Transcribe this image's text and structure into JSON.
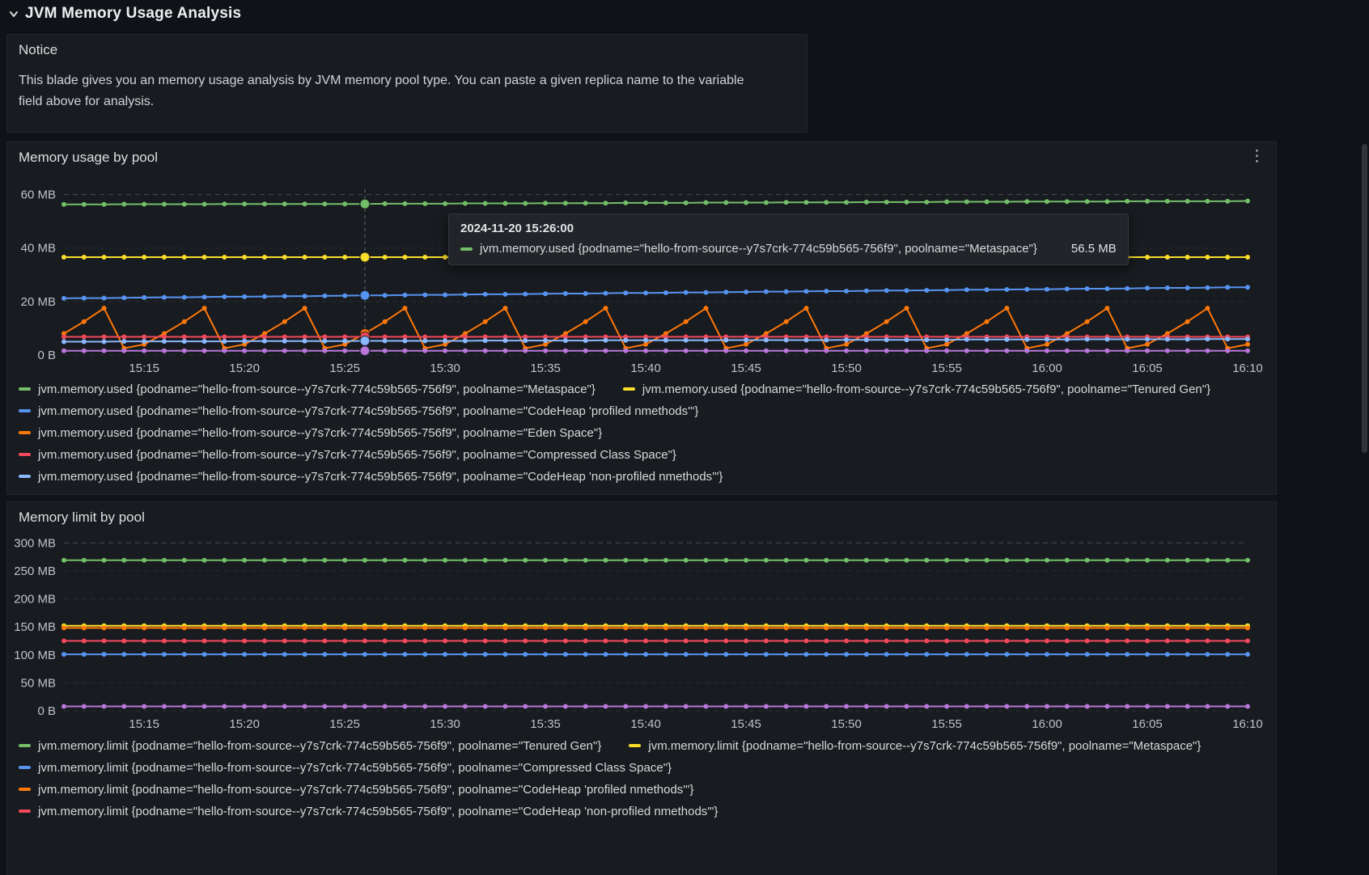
{
  "row_header": {
    "title": "JVM Memory Usage Analysis",
    "collapse_icon": "chevron-down",
    "state": "expanded"
  },
  "icons": {
    "panel_menu": "kebab-vertical",
    "kebab_glyph": "⋮"
  },
  "notice_panel": {
    "title": "Notice",
    "body": "This blade gives you an memory usage analysis by JVM memory pool type. You can paste a given replica name to the variable field above for analysis."
  },
  "usage_panel": {
    "title": "Memory usage by pool"
  },
  "limit_panel": {
    "title": "Memory limit by pool"
  },
  "tooltip": {
    "timestamp": "2024-11-20 15:26:00",
    "series_label": "jvm.memory.used {podname=\"hello-from-source--y7s7crk-774c59b565-756f9\", poolname=\"Metaspace\"}",
    "value": "56.5 MB",
    "swatch_color": "#73BF69"
  },
  "chart_data": [
    {
      "id": "usage",
      "type": "line",
      "title": "Memory usage by pool",
      "x_start": "15:11",
      "x_interval_minutes": 1,
      "x_tick_labels": [
        "15:15",
        "15:20",
        "15:25",
        "15:30",
        "15:35",
        "15:40",
        "15:45",
        "15:50",
        "15:55",
        "16:00",
        "16:05",
        "16:10"
      ],
      "x_tick_indices": [
        4,
        9,
        14,
        19,
        24,
        29,
        34,
        39,
        44,
        49,
        54,
        59
      ],
      "y_ticks": [
        0,
        20,
        40,
        60
      ],
      "y_tick_labels": [
        "0 B",
        "20 MB",
        "40 MB",
        "60 MB"
      ],
      "ylim": [
        0,
        62
      ],
      "unit": "MB",
      "grid": true,
      "legend_position": "bottom",
      "crosshair_index": 15,
      "legend_rows": [
        [
          0,
          1
        ],
        [
          2
        ],
        [
          3
        ],
        [
          4
        ],
        [
          5
        ]
      ],
      "series": [
        {
          "name": "jvm.memory.used {podname=\"hello-from-source--y7s7crk-774c59b565-756f9\", poolname=\"Metaspace\"}",
          "color": "#73BF69",
          "values": [
            56.3,
            56.3,
            56.3,
            56.4,
            56.4,
            56.4,
            56.4,
            56.4,
            56.5,
            56.5,
            56.5,
            56.5,
            56.5,
            56.5,
            56.5,
            56.5,
            56.6,
            56.6,
            56.6,
            56.6,
            56.7,
            56.7,
            56.7,
            56.7,
            56.8,
            56.8,
            56.8,
            56.8,
            56.9,
            56.9,
            56.9,
            56.9,
            57.0,
            57.0,
            57.0,
            57.0,
            57.1,
            57.1,
            57.1,
            57.1,
            57.2,
            57.2,
            57.2,
            57.2,
            57.3,
            57.3,
            57.3,
            57.3,
            57.4,
            57.4,
            57.4,
            57.4,
            57.4,
            57.5,
            57.5,
            57.5,
            57.5,
            57.5,
            57.5,
            57.6
          ]
        },
        {
          "name": "jvm.memory.used {podname=\"hello-from-source--y7s7crk-774c59b565-756f9\", poolname=\"Tenured Gen\"}",
          "color": "#FADE2A",
          "values": [
            36.6,
            36.6,
            36.6,
            36.6,
            36.6,
            36.6,
            36.6,
            36.6,
            36.6,
            36.6,
            36.6,
            36.6,
            36.6,
            36.6,
            36.6,
            36.6,
            36.6,
            36.6,
            36.6,
            36.6,
            36.6,
            36.6,
            36.6,
            36.6,
            36.6,
            36.6,
            36.6,
            36.6,
            36.6,
            36.6,
            36.6,
            36.6,
            36.6,
            36.6,
            36.6,
            36.6,
            36.6,
            36.6,
            36.6,
            36.6,
            36.6,
            36.6,
            36.6,
            36.6,
            36.6,
            36.6,
            36.6,
            36.6,
            36.6,
            36.6,
            36.6,
            36.6,
            36.6,
            36.6,
            36.6,
            36.6,
            36.6,
            36.6,
            36.6,
            36.6
          ]
        },
        {
          "name": "jvm.memory.used {podname=\"hello-from-source--y7s7crk-774c59b565-756f9\", poolname=\"CodeHeap 'profiled nmethods'\"}",
          "color": "#5794F2",
          "values": [
            21.2,
            21.3,
            21.3,
            21.4,
            21.5,
            21.6,
            21.6,
            21.7,
            21.8,
            21.8,
            21.9,
            22.0,
            22.0,
            22.1,
            22.2,
            22.3,
            22.3,
            22.4,
            22.5,
            22.5,
            22.6,
            22.7,
            22.7,
            22.8,
            22.9,
            23.0,
            23.0,
            23.1,
            23.2,
            23.2,
            23.3,
            23.4,
            23.4,
            23.5,
            23.6,
            23.7,
            23.7,
            23.8,
            23.9,
            23.9,
            24.0,
            24.1,
            24.1,
            24.2,
            24.3,
            24.4,
            24.4,
            24.5,
            24.6,
            24.6,
            24.7,
            24.8,
            24.8,
            24.9,
            25.0,
            25.1,
            25.1,
            25.2,
            25.3,
            25.3
          ]
        },
        {
          "name": "jvm.memory.used {podname=\"hello-from-source--y7s7crk-774c59b565-756f9\", poolname=\"Eden Space\"}",
          "color": "#FF780A",
          "values": [
            8,
            12.5,
            17.5,
            2.5,
            4,
            8,
            12.5,
            17.5,
            2.5,
            4,
            8,
            12.5,
            17.5,
            2.5,
            4,
            8,
            12.5,
            17.5,
            2.5,
            4,
            8,
            12.5,
            17.5,
            2.5,
            4,
            8,
            12.5,
            17.5,
            2.5,
            4,
            8,
            12.5,
            17.5,
            2.5,
            4,
            8,
            12.5,
            17.5,
            2.5,
            4,
            8,
            12.5,
            17.5,
            2.5,
            4,
            8,
            12.5,
            17.5,
            2.5,
            4,
            8,
            12.5,
            17.5,
            2.5,
            4,
            8,
            12.5,
            17.5,
            2.5,
            4
          ]
        },
        {
          "name": "jvm.memory.used {podname=\"hello-from-source--y7s7crk-774c59b565-756f9\", poolname=\"Compressed Class Space\"}",
          "color": "#F2495C",
          "values": [
            6.8,
            6.8,
            6.8,
            6.8,
            6.8,
            6.8,
            6.8,
            6.8,
            6.8,
            6.8,
            6.8,
            6.8,
            6.8,
            6.8,
            6.8,
            6.8,
            6.8,
            6.8,
            6.8,
            6.8,
            6.8,
            6.8,
            6.8,
            6.8,
            6.8,
            6.8,
            6.8,
            6.8,
            6.8,
            6.8,
            6.8,
            6.8,
            6.8,
            6.8,
            6.8,
            6.8,
            6.8,
            6.8,
            6.8,
            6.8,
            6.8,
            6.8,
            6.8,
            6.8,
            6.8,
            6.8,
            6.8,
            6.8,
            6.8,
            6.8,
            6.8,
            6.8,
            6.8,
            6.8,
            6.8,
            6.8,
            6.8,
            6.8,
            6.8,
            6.8
          ]
        },
        {
          "name": "jvm.memory.used {podname=\"hello-from-source--y7s7crk-774c59b565-756f9\", poolname=\"CodeHeap 'non-profiled nmethods'\"}",
          "color": "#8AB8FF",
          "values": [
            5.0,
            5.0,
            5.0,
            5.1,
            5.1,
            5.1,
            5.1,
            5.1,
            5.1,
            5.2,
            5.2,
            5.2,
            5.2,
            5.2,
            5.2,
            5.3,
            5.3,
            5.3,
            5.3,
            5.3,
            5.3,
            5.4,
            5.4,
            5.4,
            5.4,
            5.4,
            5.4,
            5.5,
            5.5,
            5.5,
            5.5,
            5.5,
            5.5,
            5.6,
            5.6,
            5.6,
            5.6,
            5.6,
            5.6,
            5.7,
            5.7,
            5.7,
            5.7,
            5.7,
            5.7,
            5.8,
            5.8,
            5.8,
            5.8,
            5.8,
            5.8,
            5.9,
            5.9,
            5.9,
            5.9,
            5.9,
            5.9,
            6.0,
            6.0,
            6.0
          ]
        },
        {
          "name": "",
          "note": "legend entry not visible in screenshot",
          "in_legend": false,
          "color": "#B877D9",
          "values": [
            1.6,
            1.6,
            1.6,
            1.6,
            1.6,
            1.6,
            1.6,
            1.6,
            1.6,
            1.6,
            1.6,
            1.6,
            1.6,
            1.6,
            1.6,
            1.6,
            1.6,
            1.6,
            1.6,
            1.6,
            1.6,
            1.6,
            1.6,
            1.6,
            1.6,
            1.6,
            1.6,
            1.6,
            1.6,
            1.6,
            1.6,
            1.6,
            1.6,
            1.6,
            1.6,
            1.6,
            1.6,
            1.6,
            1.6,
            1.6,
            1.6,
            1.6,
            1.6,
            1.6,
            1.6,
            1.6,
            1.6,
            1.6,
            1.6,
            1.6,
            1.6,
            1.6,
            1.6,
            1.6,
            1.6,
            1.6,
            1.6,
            1.6,
            1.6,
            1.6
          ]
        }
      ]
    },
    {
      "id": "limit",
      "type": "line",
      "title": "Memory limit by pool",
      "x_start": "15:11",
      "x_interval_minutes": 1,
      "x_tick_labels": [
        "15:15",
        "15:20",
        "15:25",
        "15:30",
        "15:35",
        "15:40",
        "15:45",
        "15:50",
        "15:55",
        "16:00",
        "16:05",
        "16:10"
      ],
      "x_tick_indices": [
        4,
        9,
        14,
        19,
        24,
        29,
        34,
        39,
        44,
        49,
        54,
        59
      ],
      "y_ticks": [
        0,
        50,
        100,
        150,
        200,
        250,
        300
      ],
      "y_tick_labels": [
        "0 B",
        "50 MB",
        "100 MB",
        "150 MB",
        "200 MB",
        "250 MB",
        "300 MB"
      ],
      "ylim": [
        0,
        312
      ],
      "unit": "MB",
      "grid": true,
      "legend_position": "bottom",
      "crosshair_index": null,
      "legend_rows": [
        [
          0,
          1
        ],
        [
          2
        ],
        [
          3
        ],
        [
          4
        ]
      ],
      "series": [
        {
          "name": "jvm.memory.limit {podname=\"hello-from-source--y7s7crk-774c59b565-756f9\", poolname=\"Tenured Gen\"}",
          "color": "#73BF69",
          "values": [
            269,
            269,
            269,
            269,
            269,
            269,
            269,
            269,
            269,
            269,
            269,
            269,
            269,
            269,
            269,
            269,
            269,
            269,
            269,
            269,
            269,
            269,
            269,
            269,
            269,
            269,
            269,
            269,
            269,
            269,
            269,
            269,
            269,
            269,
            269,
            269,
            269,
            269,
            269,
            269,
            269,
            269,
            269,
            269,
            269,
            269,
            269,
            269,
            269,
            269,
            269,
            269,
            269,
            269,
            269,
            269,
            269,
            269,
            269,
            269
          ]
        },
        {
          "name": "jvm.memory.limit {podname=\"hello-from-source--y7s7crk-774c59b565-756f9\", poolname=\"Metaspace\"}",
          "color": "#FADE2A",
          "values": [
            152,
            152,
            152,
            152,
            152,
            152,
            152,
            152,
            152,
            152,
            152,
            152,
            152,
            152,
            152,
            152,
            152,
            152,
            152,
            152,
            152,
            152,
            152,
            152,
            152,
            152,
            152,
            152,
            152,
            152,
            152,
            152,
            152,
            152,
            152,
            152,
            152,
            152,
            152,
            152,
            152,
            152,
            152,
            152,
            152,
            152,
            152,
            152,
            152,
            152,
            152,
            152,
            152,
            152,
            152,
            152,
            152,
            152,
            152,
            152
          ]
        },
        {
          "name": "jvm.memory.limit {podname=\"hello-from-source--y7s7crk-774c59b565-756f9\", poolname=\"Compressed Class Space\"}",
          "color": "#5794F2",
          "values": [
            101,
            101,
            101,
            101,
            101,
            101,
            101,
            101,
            101,
            101,
            101,
            101,
            101,
            101,
            101,
            101,
            101,
            101,
            101,
            101,
            101,
            101,
            101,
            101,
            101,
            101,
            101,
            101,
            101,
            101,
            101,
            101,
            101,
            101,
            101,
            101,
            101,
            101,
            101,
            101,
            101,
            101,
            101,
            101,
            101,
            101,
            101,
            101,
            101,
            101,
            101,
            101,
            101,
            101,
            101,
            101,
            101,
            101,
            101,
            101
          ]
        },
        {
          "name": "jvm.memory.limit {podname=\"hello-from-source--y7s7crk-774c59b565-756f9\", poolname=\"CodeHeap 'profiled nmethods'\"}",
          "color": "#FF780A",
          "values": [
            148,
            148,
            148,
            148,
            148,
            148,
            148,
            148,
            148,
            148,
            148,
            148,
            148,
            148,
            148,
            148,
            148,
            148,
            148,
            148,
            148,
            148,
            148,
            148,
            148,
            148,
            148,
            148,
            148,
            148,
            148,
            148,
            148,
            148,
            148,
            148,
            148,
            148,
            148,
            148,
            148,
            148,
            148,
            148,
            148,
            148,
            148,
            148,
            148,
            148,
            148,
            148,
            148,
            148,
            148,
            148,
            148,
            148,
            148,
            148
          ]
        },
        {
          "name": "jvm.memory.limit {podname=\"hello-from-source--y7s7crk-774c59b565-756f9\", poolname=\"CodeHeap 'non-profiled nmethods'\"}",
          "color": "#F2495C",
          "values": [
            125,
            125,
            125,
            125,
            125,
            125,
            125,
            125,
            125,
            125,
            125,
            125,
            125,
            125,
            125,
            125,
            125,
            125,
            125,
            125,
            125,
            125,
            125,
            125,
            125,
            125,
            125,
            125,
            125,
            125,
            125,
            125,
            125,
            125,
            125,
            125,
            125,
            125,
            125,
            125,
            125,
            125,
            125,
            125,
            125,
            125,
            125,
            125,
            125,
            125,
            125,
            125,
            125,
            125,
            125,
            125,
            125,
            125,
            125,
            125
          ]
        },
        {
          "name": "",
          "note": "legend entry not visible in screenshot",
          "in_legend": false,
          "color": "#B877D9",
          "values": [
            8,
            8,
            8,
            8,
            8,
            8,
            8,
            8,
            8,
            8,
            8,
            8,
            8,
            8,
            8,
            8,
            8,
            8,
            8,
            8,
            8,
            8,
            8,
            8,
            8,
            8,
            8,
            8,
            8,
            8,
            8,
            8,
            8,
            8,
            8,
            8,
            8,
            8,
            8,
            8,
            8,
            8,
            8,
            8,
            8,
            8,
            8,
            8,
            8,
            8,
            8,
            8,
            8,
            8,
            8,
            8,
            8,
            8,
            8,
            8
          ]
        }
      ]
    }
  ]
}
